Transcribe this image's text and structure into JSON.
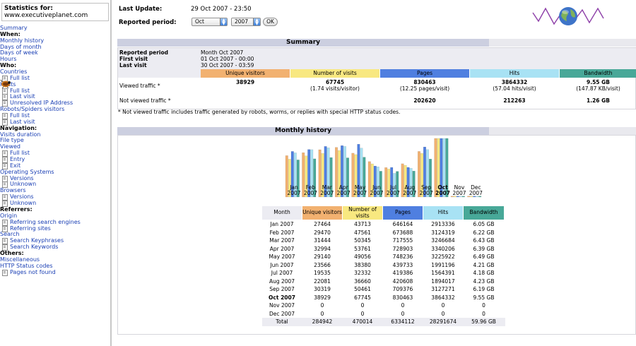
{
  "sidebar": {
    "stats_title": "Statistics for:",
    "domain": "www.executiveplanet.com",
    "menu": [
      {
        "label": "Summary",
        "kind": "link"
      },
      {
        "label": "When:",
        "kind": "head"
      },
      {
        "label": "Monthly history",
        "kind": "link"
      },
      {
        "label": "Days of month",
        "kind": "link"
      },
      {
        "label": "Days of week",
        "kind": "link"
      },
      {
        "label": "Hours",
        "kind": "link"
      },
      {
        "label": "Who:",
        "kind": "head"
      },
      {
        "label": "Countries",
        "kind": "link"
      },
      {
        "label": "Full list",
        "kind": "sub"
      },
      {
        "label": "Hosts",
        "kind": "link"
      },
      {
        "label": "Full list",
        "kind": "sub"
      },
      {
        "label": "Last visit",
        "kind": "sub"
      },
      {
        "label": "Unresolved IP Address",
        "kind": "sub"
      },
      {
        "label": "Robots/Spiders visitors",
        "kind": "link"
      },
      {
        "label": "Full list",
        "kind": "sub"
      },
      {
        "label": "Last visit",
        "kind": "sub"
      },
      {
        "label": "Navigation:",
        "kind": "head"
      },
      {
        "label": "Visits duration",
        "kind": "link"
      },
      {
        "label": "File type",
        "kind": "link"
      },
      {
        "label": "Viewed",
        "kind": "link"
      },
      {
        "label": "Full list",
        "kind": "sub"
      },
      {
        "label": "Entry",
        "kind": "sub"
      },
      {
        "label": "Exit",
        "kind": "sub"
      },
      {
        "label": "Operating Systems",
        "kind": "link"
      },
      {
        "label": "Versions",
        "kind": "sub"
      },
      {
        "label": "Unknown",
        "kind": "sub"
      },
      {
        "label": "Browsers",
        "kind": "link"
      },
      {
        "label": "Versions",
        "kind": "sub"
      },
      {
        "label": "Unknown",
        "kind": "sub"
      },
      {
        "label": "Referrers:",
        "kind": "head"
      },
      {
        "label": "Origin",
        "kind": "link"
      },
      {
        "label": "Referring search engines",
        "kind": "sub"
      },
      {
        "label": "Referring sites",
        "kind": "sub"
      },
      {
        "label": "Search",
        "kind": "link"
      },
      {
        "label": "Search Keyphrases",
        "kind": "sub"
      },
      {
        "label": "Search Keywords",
        "kind": "sub"
      },
      {
        "label": "Others:",
        "kind": "head"
      },
      {
        "label": "Miscellaneous",
        "kind": "link"
      },
      {
        "label": "HTTP Status codes",
        "kind": "link"
      },
      {
        "label": "Pages not found",
        "kind": "sub"
      }
    ]
  },
  "header": {
    "last_update_label": "Last Update:",
    "last_update_value": "29 Oct 2007 - 23:50",
    "period_label": "Reported period:",
    "month_select": "Oct",
    "year_select": "2007",
    "ok_label": "OK"
  },
  "summary": {
    "title": "Summary",
    "reported_period_label": "Reported period",
    "reported_period_value": "Month Oct 2007",
    "first_visit_label": "First visit",
    "first_visit_value": "01 Oct 2007 - 00:00",
    "last_visit_label": "Last visit",
    "last_visit_value": "30 Oct 2007 - 03:59",
    "columns": [
      "Unique visitors",
      "Number of visits",
      "Pages",
      "Hits",
      "Bandwidth"
    ],
    "viewed_label": "Viewed traffic *",
    "viewed": [
      "38929",
      "67745",
      "830463",
      "3864332",
      "9.55 GB"
    ],
    "viewed_sub": [
      "",
      "(1.74 visits/visitor)",
      "(12.25 pages/visit)",
      "(57.04 hits/visit)",
      "(147.87 KB/visit)"
    ],
    "not_viewed_label": "Not viewed traffic *",
    "not_viewed": [
      "",
      "",
      "202620",
      "212263",
      "1.26 GB"
    ],
    "note": "* Not viewed traffic includes traffic generated by robots, worms, or replies with special HTTP status codes."
  },
  "colors": {
    "unique": "#f2b170",
    "visits": "#f8e880",
    "pages": "#4f7fe0",
    "hits": "#a8e2f4",
    "bandwidth": "#48a898",
    "section_head": "#cccfe0"
  },
  "monthly": {
    "title": "Monthly history",
    "headers": [
      "Month",
      "Unique visitors",
      "Number of visits",
      "Pages",
      "Hits",
      "Bandwidth"
    ],
    "rows": [
      [
        "Jan 2007",
        "27464",
        "43713",
        "646164",
        "2913336",
        "6.05 GB"
      ],
      [
        "Feb 2007",
        "29470",
        "47561",
        "673688",
        "3124319",
        "6.22 GB"
      ],
      [
        "Mar 2007",
        "31444",
        "50345",
        "717555",
        "3246684",
        "6.43 GB"
      ],
      [
        "Apr 2007",
        "32994",
        "53761",
        "728903",
        "3340206",
        "6.39 GB"
      ],
      [
        "May 2007",
        "29140",
        "49056",
        "748236",
        "3225922",
        "6.49 GB"
      ],
      [
        "Jun 2007",
        "23566",
        "38380",
        "439733",
        "1991196",
        "4.21 GB"
      ],
      [
        "Jul 2007",
        "19535",
        "32332",
        "419386",
        "1564391",
        "4.18 GB"
      ],
      [
        "Aug 2007",
        "22081",
        "36660",
        "420608",
        "1894017",
        "4.23 GB"
      ],
      [
        "Sep 2007",
        "30319",
        "50461",
        "709376",
        "3127271",
        "6.19 GB"
      ],
      [
        "Oct 2007",
        "38929",
        "67745",
        "830463",
        "3864332",
        "9.55 GB"
      ],
      [
        "Nov 2007",
        "0",
        "0",
        "0",
        "0",
        "0"
      ],
      [
        "Dec 2007",
        "0",
        "0",
        "0",
        "0",
        "0"
      ]
    ],
    "total": [
      "Total",
      "284942",
      "470014",
      "6334112",
      "28291674",
      "59.96 GB"
    ]
  },
  "chart_data": {
    "type": "bar",
    "categories": [
      "Jan 2007",
      "Feb 2007",
      "Mar 2007",
      "Apr 2007",
      "May 2007",
      "Jun 2007",
      "Jul 2007",
      "Aug 2007",
      "Sep 2007",
      "Oct 2007",
      "Nov 2007",
      "Dec 2007"
    ],
    "axis_months": [
      "Jan",
      "Feb",
      "Mar",
      "Apr",
      "May",
      "Jun",
      "Jul",
      "Aug",
      "Sep",
      "Oct",
      "Nov",
      "Dec"
    ],
    "axis_year": "2007",
    "highlight_month": 9,
    "series": [
      {
        "name": "Unique visitors",
        "values": [
          27464,
          29470,
          31444,
          32994,
          29140,
          23566,
          19535,
          22081,
          30319,
          38929,
          0,
          0
        ],
        "color": "#f2b170"
      },
      {
        "name": "Number of visits",
        "values": [
          43713,
          47561,
          50345,
          53761,
          49056,
          38380,
          32332,
          36660,
          50461,
          67745,
          0,
          0
        ],
        "color": "#f8e880"
      },
      {
        "name": "Pages",
        "values": [
          646164,
          673688,
          717555,
          728903,
          748236,
          439733,
          419386,
          420608,
          709376,
          830463,
          0,
          0
        ],
        "color": "#4f7fe0"
      },
      {
        "name": "Hits",
        "values": [
          2913336,
          3124319,
          3246684,
          3340206,
          3225922,
          1991196,
          1564391,
          1894017,
          3127271,
          3864332,
          0,
          0
        ],
        "color": "#a8e2f4"
      },
      {
        "name": "Bandwidth",
        "values": [
          6.05,
          6.22,
          6.43,
          6.39,
          6.49,
          4.21,
          4.18,
          4.23,
          6.19,
          9.55,
          0,
          0
        ],
        "unit": "GB",
        "color": "#48a898"
      }
    ],
    "grid": false,
    "legend": "none"
  }
}
